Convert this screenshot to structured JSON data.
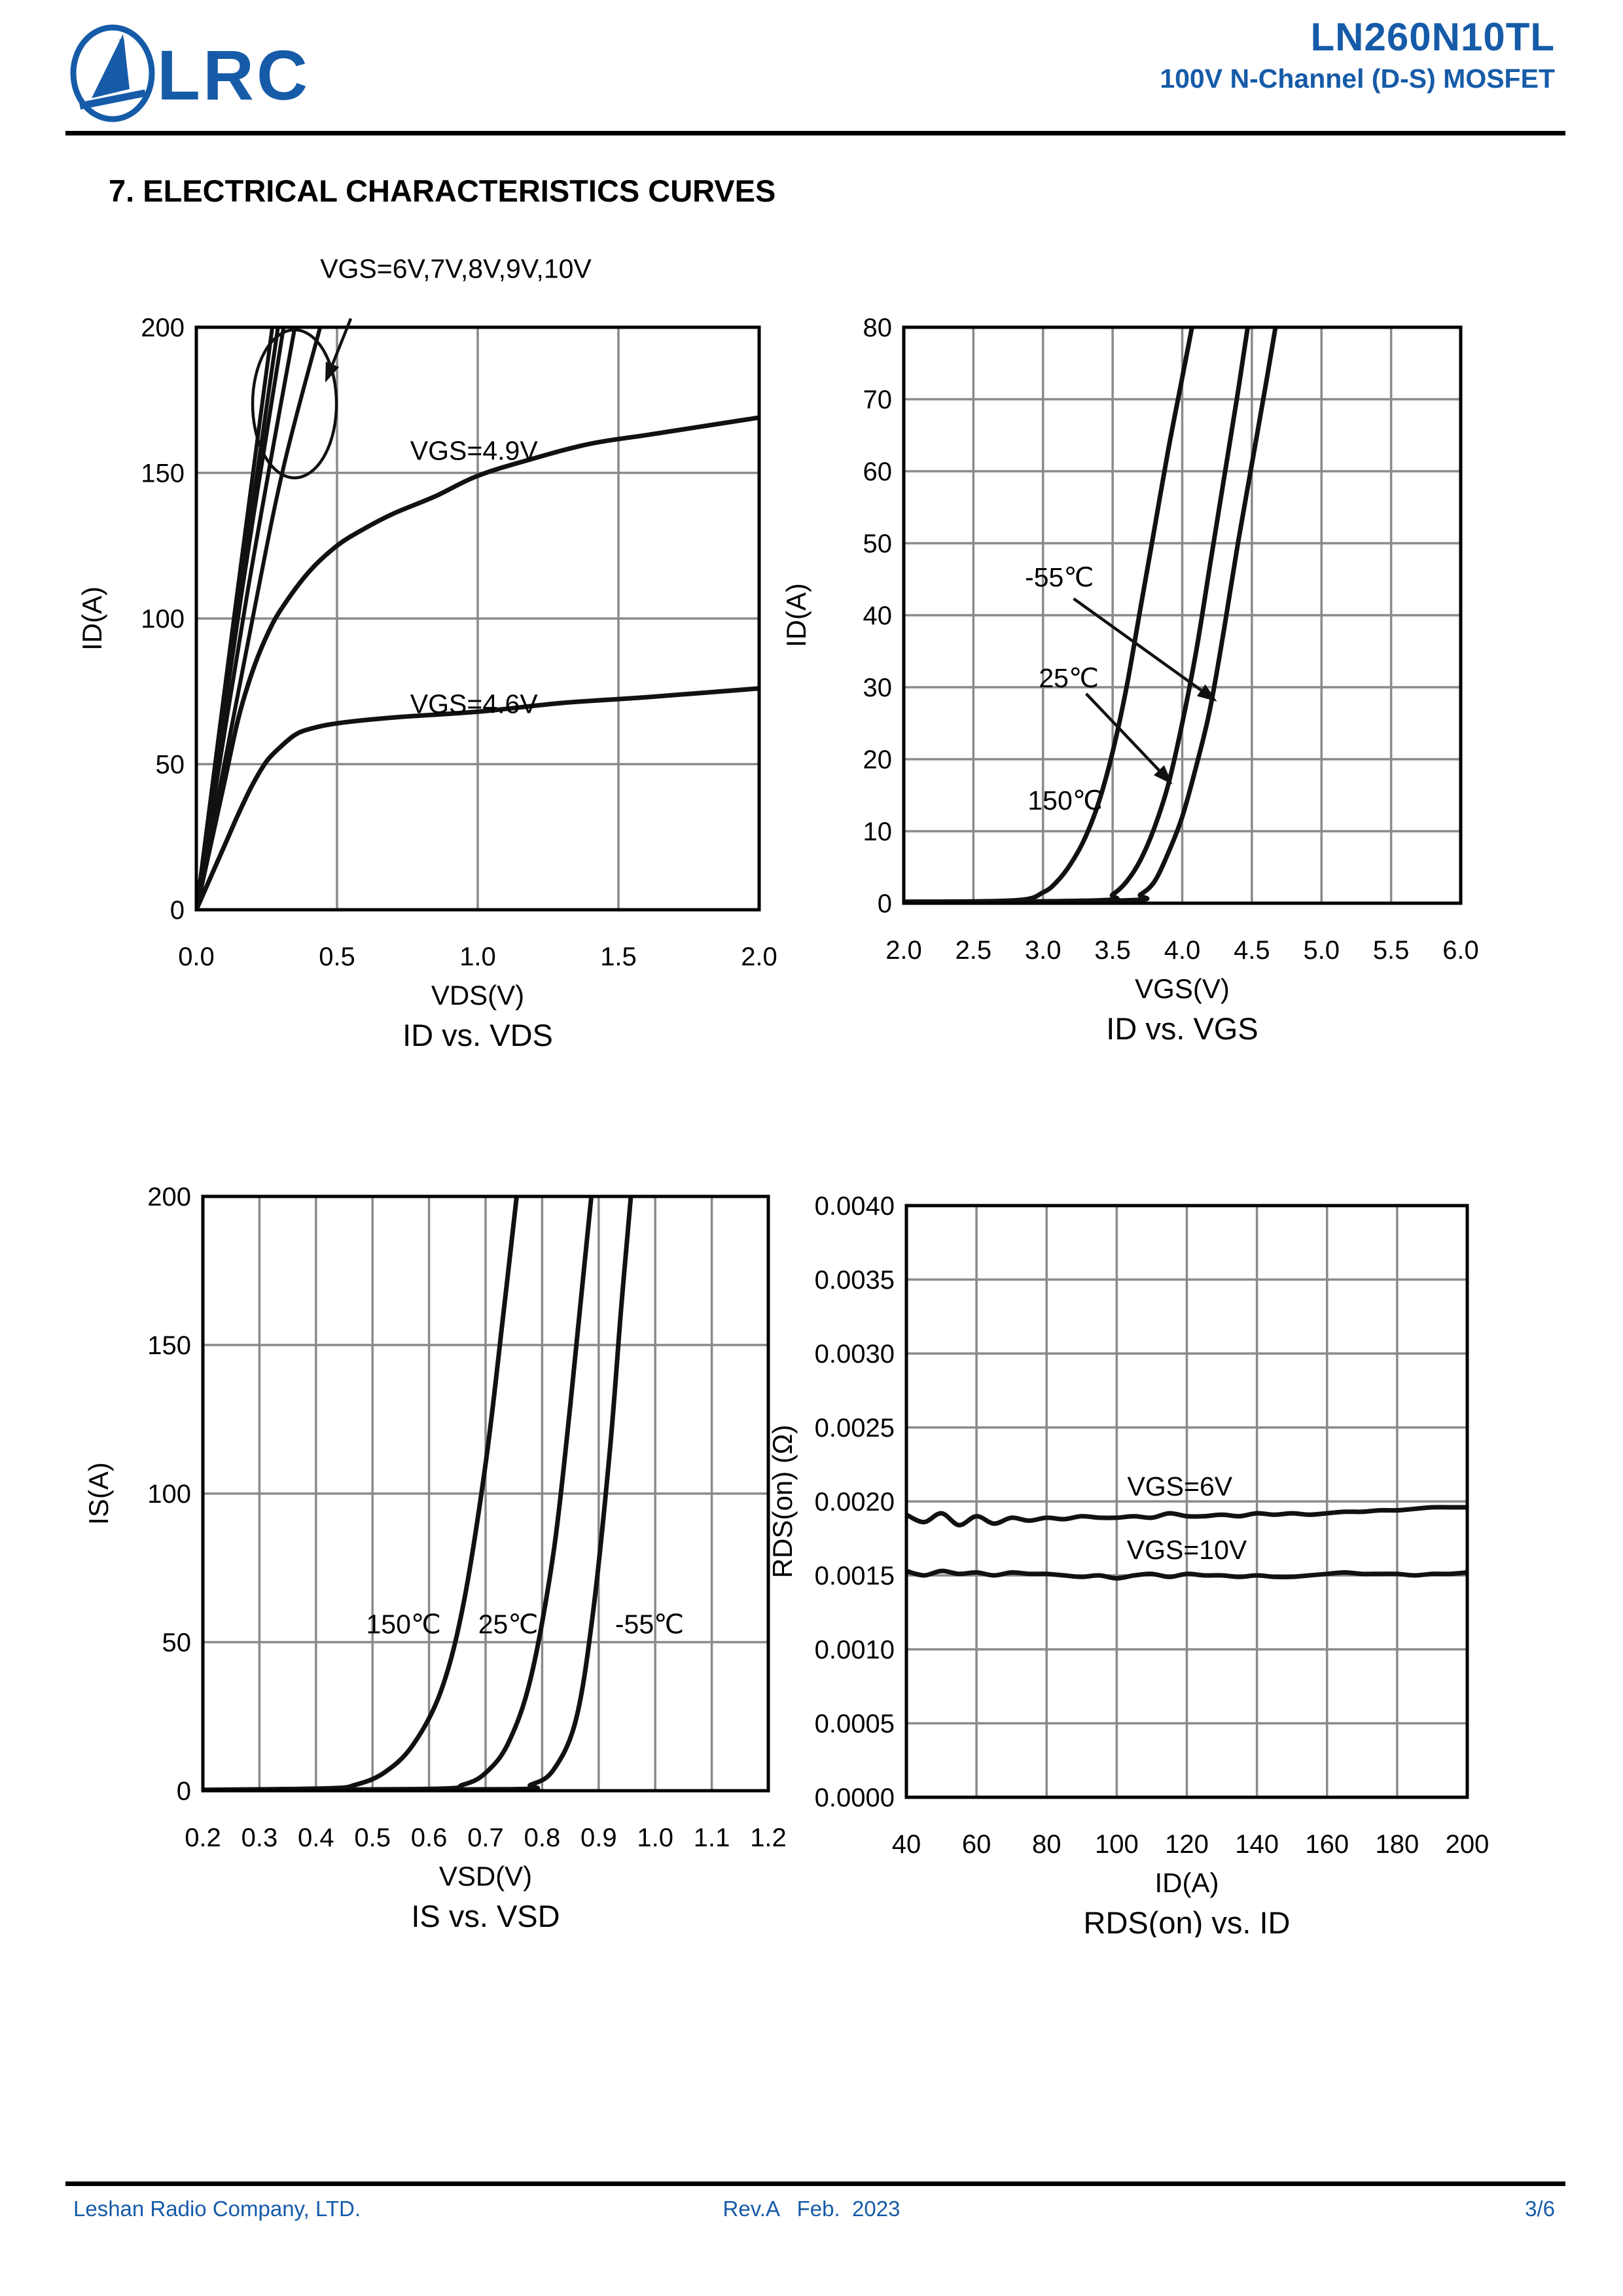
{
  "header": {
    "logo_text": "LRC",
    "part_number": "LN260N10TL",
    "subtitle": "100V N-Channel (D-S) MOSFET"
  },
  "section": {
    "heading": "7. ELECTRICAL CHARACTERISTICS CURVES"
  },
  "footer": {
    "company": "Leshan Radio Company, LTD.",
    "revision": "Rev.A   Feb.  2023",
    "page": "3/6"
  },
  "colors": {
    "accent_blue": "#165ba8",
    "grid_gray": "#8a8a8a",
    "curve_black": "#111111",
    "text_black": "#000000"
  },
  "chart_data": [
    {
      "type": "line",
      "title": "ID vs. VDS",
      "xlabel": "VDS(V)",
      "ylabel": "ID(A)",
      "xlim": [
        0,
        2
      ],
      "ylim": [
        0,
        200
      ],
      "x_grid_step": 0.5,
      "y_grid_step": 50,
      "xtick_labels": [
        "0.0",
        "0.5",
        "1.0",
        "1.5",
        "2.0"
      ],
      "ytick_labels": [
        "0",
        "50",
        "100",
        "150",
        "200"
      ],
      "grid": true,
      "legend_position": "none",
      "series": [
        {
          "name": "VGS=10V",
          "points": [
            [
              0,
              0
            ],
            [
              0.14,
              105
            ],
            [
              0.27,
              200
            ]
          ]
        },
        {
          "name": "VGS=9V",
          "points": [
            [
              0,
              0
            ],
            [
              0.15,
              105
            ],
            [
              0.29,
              200
            ]
          ]
        },
        {
          "name": "VGS=8V",
          "points": [
            [
              0,
              0
            ],
            [
              0.16,
              108
            ],
            [
              0.31,
              200
            ]
          ]
        },
        {
          "name": "VGS=7V",
          "points": [
            [
              0,
              0
            ],
            [
              0.18,
              108
            ],
            [
              0.35,
              200
            ]
          ]
        },
        {
          "name": "VGS=6V",
          "points": [
            [
              0,
              0
            ],
            [
              0.2,
              100
            ],
            [
              0.31,
              152
            ],
            [
              0.44,
              200
            ]
          ]
        },
        {
          "name": "VGS=4.9V",
          "points": [
            [
              0,
              0
            ],
            [
              0.05,
              22
            ],
            [
              0.1,
              44
            ],
            [
              0.15,
              66
            ],
            [
              0.2,
              82
            ],
            [
              0.25,
              94
            ],
            [
              0.3,
              103
            ],
            [
              0.4,
              116
            ],
            [
              0.5,
              125
            ],
            [
              0.6,
              131
            ],
            [
              0.7,
              136
            ],
            [
              0.85,
              142
            ],
            [
              1.0,
              149
            ],
            [
              1.2,
              155
            ],
            [
              1.4,
              160
            ],
            [
              1.6,
              163
            ],
            [
              1.8,
              166
            ],
            [
              2.0,
              169
            ]
          ]
        },
        {
          "name": "VGS=4.6V",
          "points": [
            [
              0,
              0
            ],
            [
              0.05,
              11
            ],
            [
              0.1,
              22
            ],
            [
              0.15,
              33
            ],
            [
              0.2,
              43
            ],
            [
              0.25,
              51
            ],
            [
              0.3,
              56
            ],
            [
              0.35,
              60
            ],
            [
              0.4,
              62
            ],
            [
              0.5,
              64
            ],
            [
              0.7,
              66
            ],
            [
              1.0,
              68
            ],
            [
              1.3,
              71
            ],
            [
              1.6,
              73
            ],
            [
              2.0,
              76
            ]
          ]
        }
      ],
      "annotations": {
        "texts": [
          {
            "text": "VGS=6V,7V,8V,9V,10V",
            "x": 0.44,
            "y": 217,
            "anchor": "start"
          },
          {
            "text": "VGS=4.9V",
            "x": 0.76,
            "y": 154.5,
            "anchor": "start"
          },
          {
            "text": "VGS=4.6V",
            "x": 0.76,
            "y": 67.5,
            "anchor": "start"
          }
        ],
        "arrows": [
          {
            "from": [
              0.549,
              203
            ],
            "to": [
              0.458,
              181
            ]
          }
        ],
        "ellipses": [
          {
            "cx": 0.349,
            "cy": 173.7,
            "rx": 0.149,
            "ry": 25.4
          }
        ]
      }
    },
    {
      "type": "line",
      "title": "ID vs. VGS",
      "xlabel": "VGS(V)",
      "ylabel": "ID(A)",
      "xlim": [
        2,
        6
      ],
      "ylim": [
        0,
        80
      ],
      "x_grid_step": 0.5,
      "y_grid_step": 10,
      "xtick_labels": [
        "2.0",
        "2.5",
        "3.0",
        "3.5",
        "4.0",
        "4.5",
        "5.0",
        "5.5",
        "6.0"
      ],
      "ytick_labels": [
        "0",
        "10",
        "20",
        "30",
        "40",
        "50",
        "60",
        "70",
        "80"
      ],
      "grid": true,
      "legend_position": "none",
      "series": [
        {
          "name": "150℃",
          "points": [
            [
              2.0,
              0.2
            ],
            [
              2.8,
              0.4
            ],
            [
              3.0,
              1.5
            ],
            [
              3.1,
              3
            ],
            [
              3.2,
              5.5
            ],
            [
              3.3,
              9
            ],
            [
              3.4,
              14
            ],
            [
              3.5,
              21
            ],
            [
              3.6,
              30
            ],
            [
              3.7,
              41
            ],
            [
              3.8,
              52
            ],
            [
              3.9,
              63
            ],
            [
              4.0,
              73
            ],
            [
              4.07,
              80
            ]
          ]
        },
        {
          "name": "25℃",
          "points": [
            [
              2.0,
              0.1
            ],
            [
              3.4,
              0.4
            ],
            [
              3.5,
              1.2
            ],
            [
              3.6,
              3
            ],
            [
              3.7,
              6
            ],
            [
              3.8,
              10.5
            ],
            [
              3.9,
              16.5
            ],
            [
              4.0,
              25
            ],
            [
              4.1,
              35
            ],
            [
              4.2,
              47
            ],
            [
              4.3,
              59
            ],
            [
              4.4,
              71
            ],
            [
              4.47,
              80
            ]
          ]
        },
        {
          "name": "-55℃",
          "points": [
            [
              2.0,
              0.1
            ],
            [
              3.6,
              0.4
            ],
            [
              3.7,
              1.2
            ],
            [
              3.8,
              3
            ],
            [
              3.9,
              7
            ],
            [
              4.0,
              12
            ],
            [
              4.1,
              19
            ],
            [
              4.2,
              27
            ],
            [
              4.3,
              38
            ],
            [
              4.4,
              50
            ],
            [
              4.5,
              61
            ],
            [
              4.6,
              72
            ],
            [
              4.67,
              80
            ]
          ]
        }
      ],
      "annotations": {
        "texts": [
          {
            "text": "-55℃",
            "x": 2.87,
            "y": 44,
            "anchor": "start"
          },
          {
            "text": "25℃",
            "x": 2.97,
            "y": 30,
            "anchor": "start"
          },
          {
            "text": "150℃",
            "x": 2.89,
            "y": 13,
            "anchor": "start"
          }
        ],
        "arrows": [
          {
            "from": [
              3.22,
              42.3
            ],
            "to": [
              4.25,
              28
            ]
          },
          {
            "from": [
              3.31,
              29.1
            ],
            "to": [
              3.93,
              16.5
            ]
          }
        ],
        "ellipses": []
      }
    },
    {
      "type": "line",
      "title": "IS vs. VSD",
      "xlabel": "VSD(V)",
      "ylabel": "IS(A)",
      "xlim": [
        0.2,
        1.2
      ],
      "ylim": [
        0,
        200
      ],
      "x_grid_step": 0.1,
      "y_grid_step": 50,
      "xtick_labels": [
        "0.2",
        "0.3",
        "0.4",
        "0.5",
        "0.6",
        "0.7",
        "0.8",
        "0.9",
        "1.0",
        "1.1",
        "1.2"
      ],
      "ytick_labels": [
        "0",
        "50",
        "100",
        "150",
        "200"
      ],
      "grid": true,
      "legend_position": "none",
      "series": [
        {
          "name": "150℃",
          "points": [
            [
              0.2,
              0.3
            ],
            [
              0.42,
              0.8
            ],
            [
              0.47,
              2
            ],
            [
              0.52,
              6
            ],
            [
              0.57,
              15
            ],
            [
              0.62,
              33
            ],
            [
              0.66,
              62
            ],
            [
              0.7,
              110
            ],
            [
              0.73,
              158
            ],
            [
              0.755,
              200
            ]
          ]
        },
        {
          "name": "25℃",
          "points": [
            [
              0.2,
              0.2
            ],
            [
              0.6,
              0.6
            ],
            [
              0.66,
              2
            ],
            [
              0.7,
              6
            ],
            [
              0.74,
              16
            ],
            [
              0.78,
              38
            ],
            [
              0.82,
              80
            ],
            [
              0.85,
              130
            ],
            [
              0.87,
              168
            ],
            [
              0.887,
              200
            ]
          ]
        },
        {
          "name": "-55℃",
          "points": [
            [
              0.2,
              0.2
            ],
            [
              0.74,
              0.5
            ],
            [
              0.78,
              2
            ],
            [
              0.82,
              7
            ],
            [
              0.86,
              24
            ],
            [
              0.89,
              60
            ],
            [
              0.92,
              115
            ],
            [
              0.94,
              163
            ],
            [
              0.957,
              200
            ]
          ]
        }
      ],
      "annotations": {
        "texts": [
          {
            "text": "150℃",
            "x": 0.555,
            "y": 53,
            "anchor": "middle"
          },
          {
            "text": "25℃",
            "x": 0.74,
            "y": 53,
            "anchor": "middle"
          },
          {
            "text": "-55℃",
            "x": 0.99,
            "y": 53,
            "anchor": "middle"
          }
        ],
        "arrows": [],
        "ellipses": []
      }
    },
    {
      "type": "line",
      "title": "RDS(on) vs. ID",
      "xlabel": "ID(A)",
      "ylabel": "RDS(on) (Ω)",
      "xlim": [
        40,
        200
      ],
      "ylim": [
        0,
        0.004
      ],
      "x_grid_step": 20,
      "y_grid_step": 0.0005,
      "xtick_labels": [
        "40",
        "60",
        "80",
        "100",
        "120",
        "140",
        "160",
        "180",
        "200"
      ],
      "ytick_labels": [
        "0.0000",
        "0.0005",
        "0.0010",
        "0.0015",
        "0.0020",
        "0.0025",
        "0.0030",
        "0.0035",
        "0.0040"
      ],
      "grid": true,
      "legend_position": "none",
      "series": [
        {
          "name": "VGS=6V",
          "points": [
            [
              40,
              0.00191
            ],
            [
              45,
              0.00186
            ],
            [
              50,
              0.00192
            ],
            [
              55,
              0.00184
            ],
            [
              60,
              0.0019
            ],
            [
              65,
              0.00185
            ],
            [
              70,
              0.00189
            ],
            [
              75,
              0.00187
            ],
            [
              80,
              0.00189
            ],
            [
              85,
              0.00188
            ],
            [
              90,
              0.0019
            ],
            [
              95,
              0.00189
            ],
            [
              100,
              0.00189
            ],
            [
              105,
              0.0019
            ],
            [
              110,
              0.00189
            ],
            [
              115,
              0.00192
            ],
            [
              120,
              0.0019
            ],
            [
              125,
              0.0019
            ],
            [
              130,
              0.00191
            ],
            [
              135,
              0.0019
            ],
            [
              140,
              0.00192
            ],
            [
              145,
              0.00191
            ],
            [
              150,
              0.00192
            ],
            [
              155,
              0.00191
            ],
            [
              160,
              0.00192
            ],
            [
              165,
              0.00193
            ],
            [
              170,
              0.00193
            ],
            [
              175,
              0.00194
            ],
            [
              180,
              0.00194
            ],
            [
              185,
              0.00195
            ],
            [
              190,
              0.00196
            ],
            [
              195,
              0.00196
            ],
            [
              200,
              0.00196
            ]
          ]
        },
        {
          "name": "VGS=10V",
          "points": [
            [
              40,
              0.00153
            ],
            [
              45,
              0.0015
            ],
            [
              50,
              0.00153
            ],
            [
              55,
              0.00151
            ],
            [
              60,
              0.00152
            ],
            [
              65,
              0.0015
            ],
            [
              70,
              0.00152
            ],
            [
              75,
              0.00151
            ],
            [
              80,
              0.00151
            ],
            [
              85,
              0.0015
            ],
            [
              90,
              0.00149
            ],
            [
              95,
              0.0015
            ],
            [
              100,
              0.00148
            ],
            [
              105,
              0.0015
            ],
            [
              110,
              0.00151
            ],
            [
              115,
              0.00149
            ],
            [
              120,
              0.00151
            ],
            [
              125,
              0.0015
            ],
            [
              130,
              0.0015
            ],
            [
              135,
              0.00149
            ],
            [
              140,
              0.0015
            ],
            [
              145,
              0.00149
            ],
            [
              150,
              0.00149
            ],
            [
              155,
              0.0015
            ],
            [
              160,
              0.00151
            ],
            [
              165,
              0.00152
            ],
            [
              170,
              0.00151
            ],
            [
              175,
              0.00151
            ],
            [
              180,
              0.00151
            ],
            [
              185,
              0.0015
            ],
            [
              190,
              0.00151
            ],
            [
              195,
              0.00151
            ],
            [
              200,
              0.00152
            ]
          ]
        }
      ],
      "annotations": {
        "texts": [
          {
            "text": "VGS=6V",
            "x": 118,
            "y": 0.00204,
            "anchor": "middle"
          },
          {
            "text": "VGS=10V",
            "x": 120,
            "y": 0.00161,
            "anchor": "middle"
          }
        ],
        "arrows": [],
        "ellipses": []
      }
    }
  ]
}
